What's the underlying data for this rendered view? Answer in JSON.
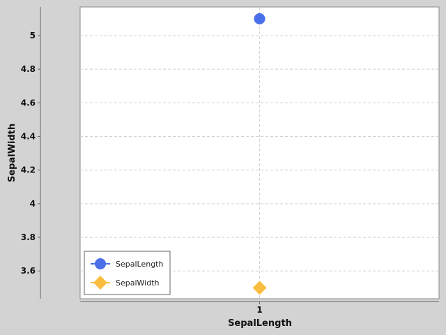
{
  "chart_data": {
    "type": "scatter",
    "xlabel": "SepalLength",
    "ylabel": "SepalWidth",
    "x_ticks": [
      1
    ],
    "y_ticks": [
      3.6,
      3.8,
      4,
      4.2,
      4.4,
      4.6,
      4.8,
      5
    ],
    "y_tick_labels": [
      "3.6",
      "3.8",
      "4",
      "4.2",
      "4.4",
      "4.6",
      "4.8",
      "5"
    ],
    "xlim": [
      0,
      2
    ],
    "ylim": [
      3.435,
      5.17
    ],
    "grid": true,
    "legend_position": "bottom-left",
    "series": [
      {
        "name": "SepalLength",
        "marker": "circle",
        "color": "#4a6fe8",
        "points": [
          {
            "x": 1,
            "y": 5.1
          }
        ]
      },
      {
        "name": "SepalWidth",
        "marker": "diamond",
        "color": "#fbbd3f",
        "points": [
          {
            "x": 1,
            "y": 3.5
          }
        ]
      }
    ]
  }
}
